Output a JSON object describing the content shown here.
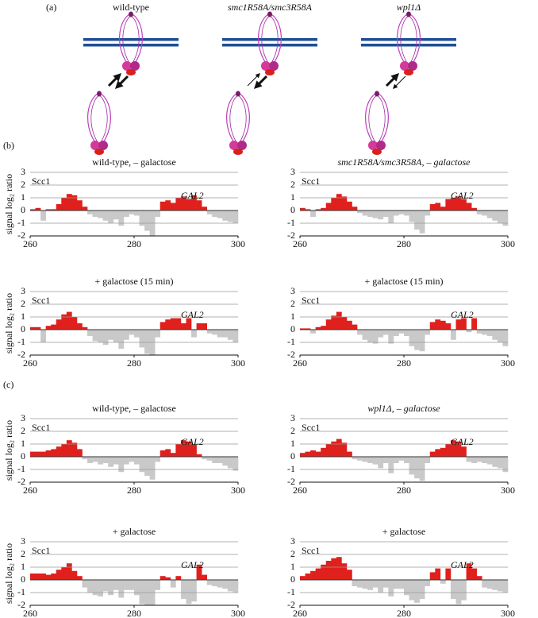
{
  "figure": {
    "panel_a": "(a)",
    "diagram_labels": [
      "wild-type",
      "smc1R58A/smc3R58A",
      "wpl1Δ"
    ],
    "panel_b": "(b)",
    "panel_c": "(c)"
  },
  "chart_data": [
    {
      "type": "bar",
      "title": "wild-type, – galactose",
      "y_label": "signal log₂ ratio",
      "series_label": "Scc1",
      "gene_label": "GAL2",
      "x": [
        260.5,
        261.5,
        262.5,
        263.5,
        264.5,
        265.5,
        266.5,
        267.5,
        268.5,
        269.5,
        270.5,
        271.5,
        272.5,
        273.5,
        274.5,
        275.5,
        276.5,
        277.5,
        278.5,
        279.5,
        280.5,
        281.5,
        282.5,
        283.5,
        284.5,
        285.5,
        286.5,
        287.5,
        288.5,
        289.5,
        290.5,
        291.5,
        292.5,
        293.5,
        294.5,
        295.5,
        296.5,
        297.5,
        298.5,
        299.5
      ],
      "values": [
        0.1,
        0.2,
        -0.8,
        0.1,
        0.1,
        0.5,
        1.0,
        1.3,
        1.2,
        0.8,
        0.3,
        -0.3,
        -0.5,
        -0.6,
        -0.8,
        -1.0,
        -0.7,
        -1.2,
        -0.5,
        -0.3,
        -0.4,
        -1.2,
        -1.6,
        -2.0,
        -0.5,
        0.7,
        0.8,
        0.6,
        1.0,
        1.1,
        0.9,
        1.2,
        0.8,
        0.3,
        -0.3,
        -0.5,
        -0.6,
        -0.8,
        -0.9,
        -1.0
      ],
      "xlim": [
        260,
        300
      ],
      "xticks": [
        260,
        280,
        300
      ],
      "ylim": [
        -2,
        3
      ],
      "yticks": [
        -2,
        -1,
        0,
        1,
        2,
        3
      ],
      "grid": true,
      "pos_color": "#e0201c",
      "neg_color": "#c9c9c9",
      "label_color": "#cc2222",
      "gene_color": "#2aa5c8"
    },
    {
      "type": "bar",
      "title": "smc1R58A/smc3R58A, – galactose",
      "series_label": "Scc1",
      "gene_label": "GAL2",
      "x": [
        260.5,
        261.5,
        262.5,
        263.5,
        264.5,
        265.5,
        266.5,
        267.5,
        268.5,
        269.5,
        270.5,
        271.5,
        272.5,
        273.5,
        274.5,
        275.5,
        276.5,
        277.5,
        278.5,
        279.5,
        280.5,
        281.5,
        282.5,
        283.5,
        284.5,
        285.5,
        286.5,
        287.5,
        288.5,
        289.5,
        290.5,
        291.5,
        292.5,
        293.5,
        294.5,
        295.5,
        296.5,
        297.5,
        298.5,
        299.5
      ],
      "values": [
        0.2,
        0.1,
        -0.5,
        0.1,
        0.2,
        0.6,
        1.0,
        1.3,
        1.1,
        0.7,
        0.3,
        -0.2,
        -0.4,
        -0.5,
        -0.6,
        -0.7,
        -0.5,
        -1.0,
        -0.4,
        -0.3,
        -0.4,
        -0.9,
        -1.5,
        -1.8,
        -0.4,
        0.5,
        0.6,
        0.3,
        0.9,
        1.0,
        1.1,
        0.9,
        0.6,
        0.2,
        -0.3,
        -0.4,
        -0.6,
        -0.8,
        -1.0,
        -1.2
      ],
      "xlim": [
        260,
        300
      ],
      "xticks": [
        260,
        280,
        300
      ],
      "ylim": [
        -2,
        3
      ],
      "yticks": [
        -2,
        -1,
        0,
        1,
        2,
        3
      ],
      "grid": true,
      "pos_color": "#e0201c",
      "neg_color": "#c9c9c9",
      "label_color": "#cc2222",
      "gene_color": "#2aa5c8"
    },
    {
      "type": "bar",
      "title": "+ galactose (15 min)",
      "y_label": "signal log₂ ratio",
      "series_label": "Scc1",
      "gene_label": "GAL2",
      "x": [
        260.5,
        261.5,
        262.5,
        263.5,
        264.5,
        265.5,
        266.5,
        267.5,
        268.5,
        269.5,
        270.5,
        271.5,
        272.5,
        273.5,
        274.5,
        275.5,
        276.5,
        277.5,
        278.5,
        279.5,
        280.5,
        281.5,
        282.5,
        283.5,
        284.5,
        285.5,
        286.5,
        287.5,
        288.5,
        289.5,
        290.5,
        291.5,
        292.5,
        293.5,
        294.5,
        295.5,
        296.5,
        297.5,
        298.5,
        299.5
      ],
      "values": [
        0.2,
        0.2,
        -1.0,
        0.3,
        0.4,
        0.8,
        1.2,
        1.4,
        1.0,
        0.5,
        0.2,
        -0.5,
        -0.9,
        -1.0,
        -1.2,
        -0.8,
        -1.0,
        -1.5,
        -0.8,
        -0.4,
        -0.6,
        -1.4,
        -1.9,
        -2.0,
        -0.6,
        0.6,
        0.8,
        0.9,
        0.9,
        0.5,
        0.9,
        -0.6,
        0.5,
        0.5,
        -0.3,
        -0.4,
        -0.6,
        -0.6,
        -0.8,
        -1.0
      ],
      "xlim": [
        260,
        300
      ],
      "xticks": [
        260,
        280,
        300
      ],
      "ylim": [
        -2,
        3
      ],
      "yticks": [
        -2,
        -1,
        0,
        1,
        2,
        3
      ],
      "grid": true,
      "pos_color": "#e0201c",
      "neg_color": "#c9c9c9",
      "label_color": "#cc2222",
      "gene_color": "#2aa5c8"
    },
    {
      "type": "bar",
      "title": "+ galactose (15 min)",
      "series_label": "Scc1",
      "gene_label": "GAL2",
      "x": [
        260.5,
        261.5,
        262.5,
        263.5,
        264.5,
        265.5,
        266.5,
        267.5,
        268.5,
        269.5,
        270.5,
        271.5,
        272.5,
        273.5,
        274.5,
        275.5,
        276.5,
        277.5,
        278.5,
        279.5,
        280.5,
        281.5,
        282.5,
        283.5,
        284.5,
        285.5,
        286.5,
        287.5,
        288.5,
        289.5,
        290.5,
        291.5,
        292.5,
        293.5,
        294.5,
        295.5,
        296.5,
        297.5,
        298.5,
        299.5
      ],
      "values": [
        0.1,
        0.1,
        -0.3,
        0.2,
        0.3,
        0.8,
        1.1,
        1.4,
        1.0,
        0.7,
        0.4,
        -0.4,
        -0.8,
        -1.0,
        -1.1,
        -0.6,
        -0.4,
        -1.1,
        -0.5,
        -0.3,
        -0.5,
        -1.3,
        -1.6,
        -1.7,
        -0.4,
        0.6,
        0.8,
        0.7,
        0.5,
        -0.8,
        0.8,
        0.9,
        -0.2,
        0.9,
        -0.3,
        -0.4,
        -0.5,
        -0.8,
        -1.0,
        -1.3
      ],
      "xlim": [
        260,
        300
      ],
      "xticks": [
        260,
        280,
        300
      ],
      "ylim": [
        -2,
        3
      ],
      "yticks": [
        -2,
        -1,
        0,
        1,
        2,
        3
      ],
      "grid": true,
      "pos_color": "#e0201c",
      "neg_color": "#c9c9c9",
      "label_color": "#cc2222",
      "gene_color": "#2aa5c8"
    },
    {
      "type": "bar",
      "title": "wild-type, – galactose",
      "y_label": "signal log₂ ratio",
      "series_label": "Scc1",
      "gene_label": "GAL2",
      "x": [
        260.5,
        261.5,
        262.5,
        263.5,
        264.5,
        265.5,
        266.5,
        267.5,
        268.5,
        269.5,
        270.5,
        271.5,
        272.5,
        273.5,
        274.5,
        275.5,
        276.5,
        277.5,
        278.5,
        279.5,
        280.5,
        281.5,
        282.5,
        283.5,
        284.5,
        285.5,
        286.5,
        287.5,
        288.5,
        289.5,
        290.5,
        291.5,
        292.5,
        293.5,
        294.5,
        295.5,
        296.5,
        297.5,
        298.5,
        299.5
      ],
      "values": [
        0.4,
        0.4,
        0.4,
        0.5,
        0.6,
        0.8,
        1.0,
        1.3,
        1.1,
        0.6,
        -0.2,
        -0.5,
        -0.4,
        -0.6,
        -0.5,
        -0.8,
        -0.6,
        -1.2,
        -0.6,
        -0.4,
        -0.6,
        -1.2,
        -1.5,
        -1.8,
        -0.4,
        0.5,
        0.6,
        0.3,
        1.0,
        1.3,
        1.2,
        1.0,
        0.2,
        -0.2,
        -0.3,
        -0.5,
        -0.5,
        -0.7,
        -0.9,
        -1.1
      ],
      "xlim": [
        260,
        300
      ],
      "xticks": [
        260,
        280,
        300
      ],
      "ylim": [
        -2,
        3
      ],
      "yticks": [
        -2,
        -1,
        0,
        1,
        2,
        3
      ],
      "grid": true,
      "pos_color": "#e0201c",
      "neg_color": "#c9c9c9",
      "label_color": "#cc2222",
      "gene_color": "#2aa5c8"
    },
    {
      "type": "bar",
      "title": "wpl1Δ, – galactose",
      "series_label": "Scc1",
      "gene_label": "GAL2",
      "x": [
        260.5,
        261.5,
        262.5,
        263.5,
        264.5,
        265.5,
        266.5,
        267.5,
        268.5,
        269.5,
        270.5,
        271.5,
        272.5,
        273.5,
        274.5,
        275.5,
        276.5,
        277.5,
        278.5,
        279.5,
        280.5,
        281.5,
        282.5,
        283.5,
        284.5,
        285.5,
        286.5,
        287.5,
        288.5,
        289.5,
        290.5,
        291.5,
        292.5,
        293.5,
        294.5,
        295.5,
        296.5,
        297.5,
        298.5,
        299.5
      ],
      "values": [
        0.3,
        0.4,
        0.5,
        0.4,
        0.7,
        1.0,
        1.2,
        1.4,
        1.1,
        0.4,
        -0.2,
        -0.3,
        -0.4,
        -0.5,
        -0.6,
        -0.9,
        -0.5,
        -1.3,
        -0.5,
        -0.3,
        -0.5,
        -1.4,
        -1.7,
        -1.9,
        -0.5,
        0.4,
        0.6,
        0.7,
        1.0,
        1.3,
        1.2,
        0.8,
        -0.4,
        -0.5,
        -0.4,
        -0.5,
        -0.6,
        -0.8,
        -0.9,
        -1.2
      ],
      "xlim": [
        260,
        300
      ],
      "xticks": [
        260,
        280,
        300
      ],
      "ylim": [
        -2,
        3
      ],
      "yticks": [
        -2,
        -1,
        0,
        1,
        2,
        3
      ],
      "grid": true,
      "pos_color": "#e0201c",
      "neg_color": "#c9c9c9",
      "label_color": "#cc2222",
      "gene_color": "#2aa5c8"
    },
    {
      "type": "bar",
      "title": "+ galactose",
      "y_label": "signal log₂ ratio",
      "series_label": "Scc1",
      "gene_label": "GAL2",
      "x": [
        260.5,
        261.5,
        262.5,
        263.5,
        264.5,
        265.5,
        266.5,
        267.5,
        268.5,
        269.5,
        270.5,
        271.5,
        272.5,
        273.5,
        274.5,
        275.5,
        276.5,
        277.5,
        278.5,
        279.5,
        280.5,
        281.5,
        282.5,
        283.5,
        284.5,
        285.5,
        286.5,
        287.5,
        288.5,
        289.5,
        290.5,
        291.5,
        292.5,
        293.5,
        294.5,
        295.5,
        296.5,
        297.5,
        298.5,
        299.5
      ],
      "values": [
        0.5,
        0.5,
        0.5,
        0.4,
        0.5,
        0.8,
        1.0,
        1.3,
        0.7,
        0.3,
        -0.6,
        -1.0,
        -1.2,
        -1.3,
        -0.9,
        -1.2,
        -0.8,
        -1.4,
        -0.8,
        -0.8,
        -1.2,
        -1.9,
        -2.0,
        -2.0,
        -0.8,
        0.3,
        0.2,
        -0.6,
        0.3,
        -1.5,
        -1.9,
        -1.7,
        1.2,
        0.4,
        -0.4,
        -0.5,
        -0.6,
        -0.7,
        -0.9,
        -1.0
      ],
      "xlim": [
        260,
        300
      ],
      "xticks": [
        260,
        280,
        300
      ],
      "ylim": [
        -2,
        3
      ],
      "yticks": [
        -2,
        -1,
        0,
        1,
        2,
        3
      ],
      "grid": true,
      "pos_color": "#e0201c",
      "neg_color": "#c9c9c9",
      "label_color": "#cc2222",
      "gene_color": "#2aa5c8"
    },
    {
      "type": "bar",
      "title": "+ galactose",
      "series_label": "Scc1",
      "gene_label": "GAL2",
      "x": [
        260.5,
        261.5,
        262.5,
        263.5,
        264.5,
        265.5,
        266.5,
        267.5,
        268.5,
        269.5,
        270.5,
        271.5,
        272.5,
        273.5,
        274.5,
        275.5,
        276.5,
        277.5,
        278.5,
        279.5,
        280.5,
        281.5,
        282.5,
        283.5,
        284.5,
        285.5,
        286.5,
        287.5,
        288.5,
        289.5,
        290.5,
        291.5,
        292.5,
        293.5,
        294.5,
        295.5,
        296.5,
        297.5,
        298.5,
        299.5
      ],
      "values": [
        0.3,
        0.5,
        0.7,
        0.9,
        1.2,
        1.5,
        1.7,
        1.8,
        1.3,
        0.8,
        -0.5,
        -0.6,
        -0.7,
        -0.8,
        -0.6,
        -1.0,
        -0.6,
        -1.3,
        -0.7,
        -0.7,
        -1.2,
        -1.6,
        -1.8,
        -1.5,
        -0.5,
        0.6,
        0.9,
        -0.3,
        0.9,
        -1.5,
        -1.9,
        -1.6,
        1.3,
        0.9,
        0.3,
        -0.6,
        -0.7,
        -0.8,
        -0.9,
        -1.0
      ],
      "xlim": [
        260,
        300
      ],
      "xticks": [
        260,
        280,
        300
      ],
      "ylim": [
        -2,
        3
      ],
      "yticks": [
        -2,
        -1,
        0,
        1,
        2,
        3
      ],
      "grid": true,
      "pos_color": "#e0201c",
      "neg_color": "#c9c9c9",
      "label_color": "#cc2222",
      "gene_color": "#2aa5c8"
    }
  ]
}
